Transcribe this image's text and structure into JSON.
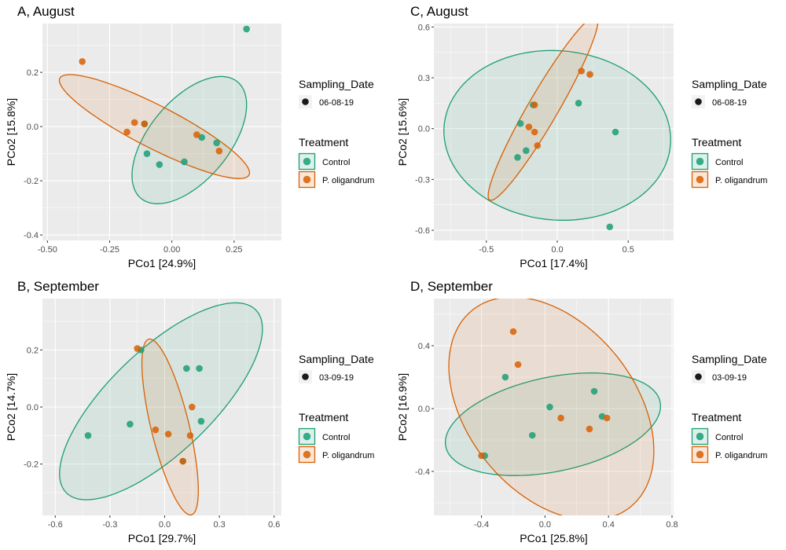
{
  "colors": {
    "control": "#1B9E77",
    "oligandrum": "#D95F02",
    "panel_bg": "#EBEBEB",
    "grid": "#FFFFFF"
  },
  "legend": {
    "sampling_title": "Sampling_Date",
    "treatment_title": "Treatment",
    "treatment_labels": [
      "Control",
      "P. oligandrum"
    ]
  },
  "chart_data": [
    {
      "type": "scatter",
      "title": "A, August",
      "xlabel": "PCo1 [24.9%]",
      "ylabel": "PCo2 [15.8%]",
      "xlim": [
        -0.52,
        0.44
      ],
      "ylim": [
        -0.42,
        0.38
      ],
      "xticks": [
        -0.5,
        -0.25,
        0,
        0.25
      ],
      "xtick_labels": [
        "-0.50",
        "-0.25",
        "0.00",
        "0.25"
      ],
      "yticks": [
        -0.4,
        -0.2,
        0,
        0.2
      ],
      "ytick_labels": [
        "-0.4",
        "-0.2",
        "0.0",
        "0.2"
      ],
      "sampling_date": "06-08-19",
      "series": [
        {
          "name": "Control",
          "points": [
            [
              0.3,
              0.36
            ],
            [
              0.18,
              -0.06
            ],
            [
              0.12,
              -0.04
            ],
            [
              0.05,
              -0.13
            ],
            [
              -0.05,
              -0.14
            ],
            [
              -0.1,
              -0.1
            ],
            [
              -0.11,
              0.01
            ]
          ]
        },
        {
          "name": "P. oligandrum",
          "points": [
            [
              -0.36,
              0.24
            ],
            [
              -0.15,
              0.015
            ],
            [
              -0.11,
              0.01
            ],
            [
              -0.18,
              -0.02
            ],
            [
              0.1,
              -0.03
            ],
            [
              0.19,
              -0.09
            ]
          ]
        }
      ],
      "ellipses": [
        {
          "series": "Control",
          "cx": 0.07,
          "cy": -0.05,
          "rx": 0.29,
          "ry": 0.155,
          "angle_deg": 46
        },
        {
          "series": "P. oligandrum",
          "cx": -0.07,
          "cy": 0.0,
          "rx": 0.42,
          "ry": 0.08,
          "angle_deg": -25
        }
      ]
    },
    {
      "type": "scatter",
      "title": "C, August",
      "xlabel": "PCo1 [17.4%]",
      "ylabel": "PCo2 [15.6%]",
      "xlim": [
        -0.87,
        0.82
      ],
      "ylim": [
        -0.66,
        0.62
      ],
      "xticks": [
        -0.5,
        0,
        0.5
      ],
      "xtick_labels": [
        "-0.5",
        "0.0",
        "0.5"
      ],
      "yticks": [
        -0.6,
        -0.3,
        0,
        0.3,
        0.6
      ],
      "ytick_labels": [
        "-0.6",
        "-0.3",
        "0.0",
        "0.3",
        "0.6"
      ],
      "sampling_date": "06-08-19",
      "series": [
        {
          "name": "Control",
          "points": [
            [
              -0.26,
              0.03
            ],
            [
              -0.22,
              -0.13
            ],
            [
              -0.28,
              -0.17
            ],
            [
              0.15,
              0.15
            ],
            [
              0.41,
              -0.02
            ],
            [
              0.37,
              -0.58
            ],
            [
              -0.17,
              0.14
            ]
          ]
        },
        {
          "name": "P. oligandrum",
          "points": [
            [
              0.17,
              0.34
            ],
            [
              0.23,
              0.32
            ],
            [
              -0.16,
              0.14
            ],
            [
              -0.2,
              0.01
            ],
            [
              -0.16,
              -0.02
            ],
            [
              -0.14,
              -0.1
            ]
          ]
        }
      ],
      "ellipses": [
        {
          "series": "Control",
          "cx": 0.0,
          "cy": -0.04,
          "rx": 0.8,
          "ry": 0.5,
          "angle_deg": -3
        },
        {
          "series": "P. oligandrum",
          "cx": -0.1,
          "cy": 0.12,
          "rx": 0.66,
          "ry": 0.1,
          "angle_deg": 55
        }
      ]
    },
    {
      "type": "scatter",
      "title": "B, September",
      "xlabel": "PCo1 [29.7%]",
      "ylabel": "PCo2 [14.7%]",
      "xlim": [
        -0.67,
        0.64
      ],
      "ylim": [
        -0.38,
        0.38
      ],
      "xticks": [
        -0.6,
        -0.3,
        0,
        0.3,
        0.6
      ],
      "xtick_labels": [
        "-0.6",
        "-0.3",
        "0.0",
        "0.3",
        "0.6"
      ],
      "yticks": [
        -0.2,
        0,
        0.2
      ],
      "ytick_labels": [
        "-0.2",
        "0.0",
        "0.2"
      ],
      "sampling_date": "03-09-19",
      "series": [
        {
          "name": "Control",
          "points": [
            [
              -0.42,
              -0.1
            ],
            [
              -0.19,
              -0.06
            ],
            [
              -0.13,
              0.2
            ],
            [
              0.12,
              0.135
            ],
            [
              0.19,
              0.135
            ],
            [
              0.2,
              -0.05
            ],
            [
              0.1,
              -0.19
            ]
          ]
        },
        {
          "name": "P. oligandrum",
          "points": [
            [
              -0.15,
              0.205
            ],
            [
              0.15,
              0.0
            ],
            [
              -0.05,
              -0.08
            ],
            [
              0.02,
              -0.095
            ],
            [
              0.14,
              -0.1
            ],
            [
              0.1,
              -0.19
            ]
          ]
        }
      ],
      "ellipses": [
        {
          "series": "Control",
          "cx": -0.02,
          "cy": 0.02,
          "rx": 0.62,
          "ry": 0.21,
          "angle_deg": 28
        },
        {
          "series": "P. oligandrum",
          "cx": 0.03,
          "cy": -0.07,
          "rx": 0.33,
          "ry": 0.1,
          "angle_deg": -68
        }
      ]
    },
    {
      "type": "scatter",
      "title": "D, September",
      "xlabel": "PCo1 [25.8%]",
      "ylabel": "PCo2 [16.9%]",
      "xlim": [
        -0.7,
        0.81
      ],
      "ylim": [
        -0.68,
        0.7
      ],
      "xticks": [
        -0.4,
        0,
        0.4,
        0.8
      ],
      "xtick_labels": [
        "-0.4",
        "0.0",
        "0.4",
        "0.8"
      ],
      "yticks": [
        -0.4,
        0,
        0.4
      ],
      "ytick_labels": [
        "-0.4",
        "0.0",
        "0.4"
      ],
      "sampling_date": "03-09-19",
      "series": [
        {
          "name": "Control",
          "points": [
            [
              -0.25,
              0.2
            ],
            [
              0.03,
              0.01
            ],
            [
              0.31,
              0.11
            ],
            [
              0.36,
              -0.05
            ],
            [
              -0.08,
              -0.17
            ],
            [
              -0.38,
              -0.3
            ]
          ]
        },
        {
          "name": "P. oligandrum",
          "points": [
            [
              -0.2,
              0.49
            ],
            [
              -0.17,
              0.28
            ],
            [
              -0.4,
              -0.3
            ],
            [
              0.1,
              -0.06
            ],
            [
              0.28,
              -0.13
            ],
            [
              0.39,
              -0.06
            ]
          ]
        }
      ],
      "ellipses": [
        {
          "series": "Control",
          "cx": 0.05,
          "cy": -0.1,
          "rx": 0.69,
          "ry": 0.3,
          "angle_deg": 12
        },
        {
          "series": "P. oligandrum",
          "cx": 0.04,
          "cy": 0.0,
          "rx": 0.8,
          "ry": 0.53,
          "angle_deg": -52
        }
      ]
    }
  ]
}
